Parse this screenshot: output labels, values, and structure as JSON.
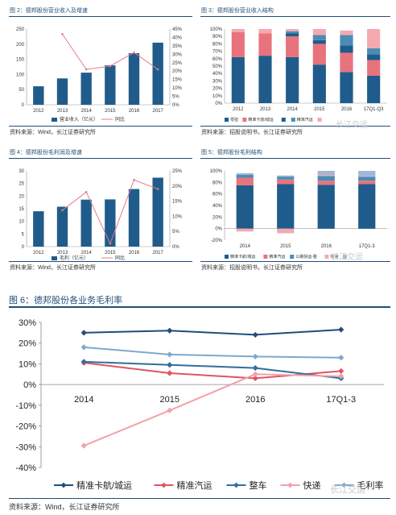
{
  "charts": [
    {
      "title": "图 2：德邦股份营业收入及增速",
      "source": "资料来源：Wind，长江证券研究所"
    },
    {
      "title": "图 3：德邦股份营业收入结构",
      "source": "资料来源：招股说明书，长江证券研究所"
    },
    {
      "title": "图 4：德邦股份毛利润及增速",
      "source": "资料来源：Wind，长江证券研究所"
    },
    {
      "title": "图 5：德邦股份毛利结构",
      "source": "资料来源：招股说明书，长江证券研究所"
    },
    {
      "title": "图 6：德邦股份各业务毛利率",
      "source": "资料来源：Wind，长江证券研究所"
    }
  ],
  "watermark": "长江交运",
  "chart_data": [
    {
      "type": "bar",
      "categories": [
        "2012",
        "2013",
        "2014",
        "2015",
        "2016",
        "2017"
      ],
      "series": [
        {
          "name": "营业收入（亿元）",
          "type": "bar",
          "values": [
            61,
            87,
            106,
            130,
            170,
            205
          ]
        },
        {
          "name": "同比",
          "type": "line",
          "axis": "right",
          "values": [
            null,
            42,
            21,
            23,
            31,
            21
          ]
        }
      ],
      "ylim": [
        0,
        250
      ],
      "y_ticks": [
        0,
        50,
        100,
        150,
        200,
        250
      ],
      "y2lim": [
        0,
        45
      ],
      "y2_ticks": [
        "0%",
        "5%",
        "10%",
        "15%",
        "20%",
        "25%",
        "30%",
        "35%",
        "40%",
        "45%"
      ],
      "colors": {
        "bar": "#1f5c8b",
        "line": "#e37c86"
      },
      "legend": "bottom"
    },
    {
      "type": "bar",
      "stacked": true,
      "percent": true,
      "categories": [
        "2012",
        "2013",
        "2014",
        "2015",
        "2016",
        "17Q1-Q3"
      ],
      "series": [
        {
          "name": "零担",
          "values": [
            62,
            64,
            62,
            52,
            42,
            37
          ],
          "color": "#1f5c8b"
        },
        {
          "name": "精准卡航/城运",
          "values": [
            34,
            30,
            28,
            28,
            26,
            21
          ],
          "color": "#e8737c"
        },
        {
          "name": "",
          "values": [
            0,
            0,
            4,
            5,
            10,
            8
          ],
          "color": "#1f5c8b"
        },
        {
          "name": "精准汽运",
          "values": [
            0,
            0,
            3,
            7,
            14,
            8
          ],
          "color": "#4a8cb6"
        },
        {
          "name": "",
          "values": [
            4,
            6,
            3,
            8,
            6,
            26
          ],
          "color": "#f4a9b0"
        }
      ],
      "ylim": [
        0,
        100
      ],
      "y_ticks": [
        "0%",
        "10%",
        "20%",
        "30%",
        "40%",
        "50%",
        "60%",
        "70%",
        "80%",
        "90%",
        "100%"
      ],
      "legend": "bottom"
    },
    {
      "type": "bar",
      "categories": [
        "2012",
        "2013",
        "2014",
        "2015",
        "2016",
        "2017"
      ],
      "series": [
        {
          "name": "毛利（亿元）",
          "type": "bar",
          "values": [
            14,
            15.8,
            18.6,
            18.7,
            22.8,
            27.3
          ]
        },
        {
          "name": "同比",
          "type": "line",
          "axis": "right",
          "values": [
            null,
            12,
            18,
            1,
            22,
            19
          ]
        }
      ],
      "ylim": [
        0,
        30
      ],
      "y_ticks": [
        0,
        5,
        10,
        15,
        20,
        25,
        30
      ],
      "y2lim": [
        0,
        25
      ],
      "y2_ticks": [
        "0%",
        "5%",
        "10%",
        "15%",
        "20%",
        "25%"
      ],
      "colors": {
        "bar": "#1f5c8b",
        "line": "#e37c86"
      },
      "legend": "bottom"
    },
    {
      "type": "bar",
      "stacked": true,
      "percent": true,
      "categories": [
        "2014",
        "2015",
        "2016",
        "17Q1-3"
      ],
      "series": [
        {
          "name": "精准卡航/城运",
          "values": [
            75,
            77,
            76,
            77
          ],
          "color": "#1f5c8b"
        },
        {
          "name": "精准汽运",
          "values": [
            13,
            8,
            7,
            6
          ],
          "color": "#e8737c"
        },
        {
          "name": "公路快运-整",
          "values": [
            5,
            5,
            8,
            7
          ],
          "color": "#4a8cb6"
        },
        {
          "name": "快递",
          "values": [
            -5,
            -8,
            2,
            1
          ],
          "color": "#f4a9b0"
        },
        {
          "name": "",
          "values": [
            3,
            2,
            7,
            9
          ],
          "color": "#9db9d6"
        }
      ],
      "ylim": [
        -20,
        100
      ],
      "y_ticks": [
        "-20%",
        "0%",
        "20%",
        "40%",
        "60%",
        "80%",
        "100%"
      ],
      "legend": "bottom"
    },
    {
      "type": "line",
      "categories": [
        "2014",
        "2015",
        "2016",
        "17Q1-3"
      ],
      "series": [
        {
          "name": "精准卡航/城运",
          "values": [
            25,
            26,
            24,
            26.5
          ],
          "color": "#1f4e79",
          "marker": "diamond"
        },
        {
          "name": "精准汽运",
          "values": [
            10.5,
            5.5,
            3,
            6.5
          ],
          "color": "#e0555f",
          "marker": "diamond"
        },
        {
          "name": "整车",
          "values": [
            11,
            9.5,
            8,
            3
          ],
          "color": "#2f6f9a",
          "marker": "diamond"
        },
        {
          "name": "快递",
          "values": [
            -29.5,
            -12.5,
            5,
            4
          ],
          "color": "#f2a1a8",
          "marker": "diamond"
        },
        {
          "name": "毛利率",
          "values": [
            18,
            14.5,
            13.5,
            13
          ],
          "color": "#7fa8cc",
          "marker": "diamond"
        }
      ],
      "ylim": [
        -40,
        30
      ],
      "y_ticks": [
        "-40%",
        "-30%",
        "-20%",
        "-10%",
        "0%",
        "10%",
        "20%",
        "30%"
      ],
      "legend": "bottom"
    }
  ]
}
